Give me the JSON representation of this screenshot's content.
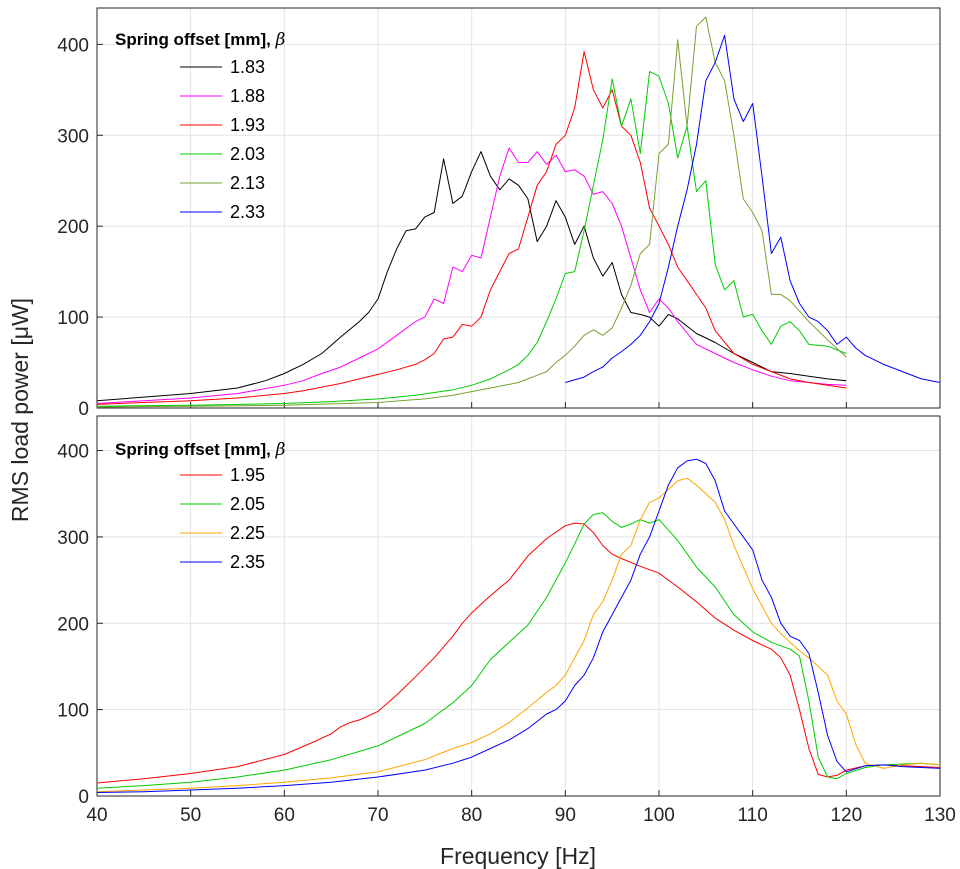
{
  "figure": {
    "ylabel": "RMS load power [μW]",
    "xlabel": "Frequency [Hz]",
    "x_ticks": [
      40,
      50,
      60,
      70,
      80,
      90,
      100,
      110,
      120,
      130
    ],
    "y_ticks": [
      0,
      100,
      200,
      300,
      400
    ]
  },
  "chart_data": [
    {
      "type": "line",
      "panel": "top",
      "legend_title": "Spring offset [mm],",
      "legend_symbol": "β",
      "legend_location": "top-left",
      "xlim": [
        40,
        130
      ],
      "ylim": [
        0,
        440
      ],
      "grid": true,
      "series": [
        {
          "name": "1.83",
          "color": "#000000",
          "x": [
            40,
            45,
            50,
            55,
            58,
            60,
            62,
            64,
            66,
            68,
            69,
            70,
            71,
            72,
            73,
            74,
            75,
            76,
            77,
            78,
            79,
            80,
            81,
            82,
            83,
            84,
            85,
            86,
            87,
            88,
            89,
            90,
            91,
            92,
            93,
            94,
            95,
            96,
            97,
            98,
            99,
            100,
            101,
            102,
            104,
            106,
            108,
            110,
            112,
            114,
            116,
            118,
            120
          ],
          "y": [
            8,
            12,
            16,
            22,
            30,
            38,
            48,
            60,
            78,
            95,
            105,
            120,
            150,
            175,
            195,
            197,
            210,
            215,
            274,
            225,
            233,
            260,
            282,
            255,
            240,
            252,
            245,
            230,
            183,
            200,
            228,
            210,
            180,
            200,
            165,
            145,
            160,
            125,
            105,
            103,
            100,
            90,
            103,
            98,
            82,
            72,
            60,
            50,
            40,
            38,
            35,
            32,
            30
          ]
        },
        {
          "name": "1.88",
          "color": "#ff00ff",
          "x": [
            40,
            45,
            50,
            55,
            60,
            62,
            64,
            66,
            68,
            70,
            72,
            74,
            75,
            76,
            77,
            78,
            79,
            80,
            81,
            82,
            83,
            84,
            85,
            86,
            87,
            88,
            89,
            90,
            91,
            92,
            93,
            94,
            95,
            96,
            97,
            98,
            99,
            100,
            101,
            102,
            104,
            106,
            108,
            110,
            112,
            114,
            116,
            118,
            120
          ],
          "y": [
            5,
            8,
            11,
            16,
            25,
            30,
            38,
            45,
            55,
            65,
            80,
            95,
            100,
            120,
            115,
            155,
            150,
            168,
            165,
            210,
            255,
            286,
            270,
            270,
            282,
            268,
            278,
            260,
            262,
            255,
            235,
            238,
            225,
            200,
            165,
            130,
            105,
            120,
            110,
            95,
            70,
            60,
            50,
            42,
            35,
            30,
            28,
            26,
            25
          ]
        },
        {
          "name": "1.93",
          "color": "#ff0000",
          "x": [
            40,
            45,
            50,
            55,
            60,
            62,
            64,
            66,
            68,
            70,
            72,
            74,
            75,
            76,
            77,
            78,
            79,
            80,
            81,
            82,
            83,
            84,
            85,
            86,
            87,
            88,
            89,
            90,
            91,
            92,
            93,
            94,
            95,
            96,
            97,
            98,
            99,
            100,
            101,
            102,
            103,
            104,
            105,
            106,
            108,
            110,
            112,
            114,
            116,
            118,
            120
          ],
          "y": [
            4,
            6,
            8,
            11,
            16,
            19,
            23,
            27,
            32,
            37,
            42,
            48,
            53,
            60,
            76,
            78,
            92,
            90,
            100,
            130,
            150,
            170,
            175,
            210,
            245,
            260,
            290,
            300,
            330,
            392,
            350,
            330,
            350,
            310,
            300,
            270,
            220,
            200,
            180,
            155,
            140,
            125,
            110,
            85,
            60,
            48,
            40,
            32,
            28,
            25,
            22
          ]
        },
        {
          "name": "2.03",
          "color": "#00cc00",
          "x": [
            40,
            50,
            60,
            65,
            70,
            72,
            74,
            76,
            78,
            80,
            82,
            84,
            85,
            86,
            87,
            88,
            89,
            90,
            91,
            92,
            93,
            94,
            95,
            96,
            97,
            98,
            99,
            100,
            101,
            102,
            103,
            104,
            105,
            106,
            107,
            108,
            109,
            110,
            111,
            112,
            113,
            114,
            115,
            116,
            118,
            120
          ],
          "y": [
            2,
            3,
            5,
            7,
            10,
            12,
            14,
            17,
            20,
            25,
            32,
            42,
            48,
            58,
            72,
            95,
            120,
            148,
            150,
            195,
            245,
            295,
            362,
            310,
            340,
            280,
            370,
            365,
            335,
            275,
            310,
            238,
            250,
            158,
            130,
            140,
            100,
            103,
            85,
            70,
            90,
            95,
            85,
            70,
            68,
            60
          ]
        },
        {
          "name": "2.13",
          "color": "#77a233",
          "x": [
            40,
            50,
            60,
            70,
            75,
            78,
            80,
            82,
            84,
            85,
            86,
            87,
            88,
            89,
            90,
            91,
            92,
            93,
            94,
            95,
            96,
            97,
            98,
            99,
            100,
            101,
            102,
            103,
            104,
            105,
            106,
            107,
            108,
            109,
            110,
            111,
            112,
            113,
            114,
            116,
            118,
            120
          ],
          "y": [
            1,
            2,
            3,
            6,
            10,
            14,
            18,
            22,
            26,
            28,
            32,
            36,
            40,
            50,
            58,
            68,
            80,
            86,
            80,
            88,
            110,
            135,
            170,
            180,
            280,
            290,
            405,
            310,
            420,
            430,
            380,
            360,
            300,
            230,
            215,
            195,
            125,
            125,
            118,
            95,
            75,
            56
          ]
        },
        {
          "name": "2.33",
          "color": "#0000ff",
          "x": [
            90,
            92,
            93,
            94,
            95,
            96,
            97,
            98,
            99,
            100,
            101,
            102,
            103,
            104,
            105,
            106,
            107,
            108,
            109,
            110,
            111,
            112,
            113,
            114,
            115,
            116,
            117,
            118,
            119,
            120,
            121,
            122,
            124,
            126,
            128,
            130
          ],
          "y": [
            28,
            34,
            40,
            45,
            55,
            62,
            70,
            80,
            95,
            115,
            155,
            200,
            240,
            290,
            360,
            380,
            410,
            340,
            315,
            335,
            255,
            170,
            188,
            140,
            115,
            100,
            95,
            85,
            70,
            78,
            66,
            58,
            48,
            40,
            32,
            28
          ]
        }
      ]
    },
    {
      "type": "line",
      "panel": "bottom",
      "legend_title": "Spring offset [mm],",
      "legend_symbol": "β",
      "legend_location": "top-left",
      "xlim": [
        40,
        130
      ],
      "ylim": [
        0,
        440
      ],
      "grid": true,
      "series": [
        {
          "name": "1.95",
          "color": "#ff0000",
          "x": [
            40,
            45,
            50,
            55,
            60,
            63,
            65,
            66,
            67,
            68,
            70,
            72,
            74,
            76,
            78,
            79,
            80,
            82,
            84,
            86,
            88,
            90,
            91,
            92,
            93,
            94,
            95,
            96,
            98,
            100,
            102,
            104,
            106,
            108,
            110,
            112,
            113,
            114,
            115,
            116,
            117,
            118,
            119,
            120,
            122,
            124,
            126,
            128,
            130
          ],
          "y": [
            15,
            20,
            26,
            34,
            48,
            62,
            72,
            80,
            85,
            88,
            98,
            117,
            138,
            160,
            185,
            200,
            212,
            232,
            250,
            278,
            298,
            313,
            316,
            315,
            305,
            290,
            280,
            275,
            266,
            258,
            242,
            225,
            206,
            192,
            180,
            170,
            160,
            140,
            100,
            55,
            25,
            22,
            24,
            30,
            35,
            36,
            35,
            34,
            33
          ]
        },
        {
          "name": "2.05",
          "color": "#00cc00",
          "x": [
            40,
            45,
            50,
            55,
            60,
            65,
            70,
            75,
            78,
            80,
            82,
            84,
            86,
            88,
            90,
            91,
            92,
            93,
            94,
            95,
            96,
            97,
            98,
            99,
            100,
            102,
            104,
            106,
            108,
            110,
            112,
            114,
            115,
            116,
            117,
            118,
            119,
            120,
            122,
            124,
            126,
            128,
            130
          ],
          "y": [
            9,
            12,
            16,
            22,
            30,
            42,
            58,
            84,
            108,
            128,
            158,
            178,
            198,
            230,
            270,
            292,
            315,
            326,
            328,
            318,
            311,
            315,
            320,
            316,
            320,
            296,
            265,
            242,
            210,
            190,
            178,
            170,
            162,
            110,
            45,
            22,
            20,
            26,
            33,
            36,
            37,
            38,
            36
          ]
        },
        {
          "name": "2.25",
          "color": "#ffa500",
          "x": [
            40,
            45,
            50,
            55,
            60,
            65,
            70,
            75,
            78,
            80,
            82,
            84,
            86,
            88,
            89,
            90,
            91,
            92,
            93,
            94,
            95,
            96,
            97,
            98,
            99,
            100,
            101,
            102,
            103,
            104,
            105,
            106,
            107,
            108,
            109,
            110,
            111,
            112,
            113,
            114,
            115,
            116,
            117,
            118,
            119,
            120,
            121,
            122,
            124,
            126,
            128,
            130
          ],
          "y": [
            5,
            7,
            9,
            12,
            16,
            21,
            28,
            42,
            55,
            62,
            72,
            85,
            102,
            120,
            128,
            140,
            160,
            180,
            210,
            225,
            250,
            280,
            290,
            320,
            340,
            345,
            355,
            365,
            368,
            360,
            350,
            340,
            320,
            290,
            265,
            240,
            220,
            200,
            188,
            178,
            168,
            160,
            150,
            140,
            110,
            95,
            60,
            38,
            32,
            36,
            38,
            36
          ]
        },
        {
          "name": "2.35",
          "color": "#0000ff",
          "x": [
            40,
            45,
            50,
            55,
            60,
            65,
            70,
            75,
            78,
            80,
            82,
            84,
            86,
            88,
            89,
            90,
            91,
            92,
            93,
            94,
            95,
            96,
            97,
            98,
            99,
            100,
            101,
            102,
            103,
            104,
            105,
            106,
            107,
            108,
            109,
            110,
            111,
            112,
            113,
            114,
            115,
            116,
            117,
            118,
            119,
            120,
            122,
            124,
            126,
            128,
            130
          ],
          "y": [
            4,
            5,
            7,
            9,
            12,
            16,
            22,
            30,
            38,
            45,
            55,
            65,
            78,
            95,
            100,
            110,
            128,
            140,
            160,
            190,
            210,
            230,
            250,
            280,
            300,
            330,
            360,
            380,
            388,
            390,
            385,
            365,
            330,
            315,
            300,
            285,
            250,
            230,
            200,
            185,
            180,
            165,
            120,
            70,
            40,
            28,
            35,
            36,
            34,
            33,
            32
          ]
        }
      ]
    }
  ]
}
